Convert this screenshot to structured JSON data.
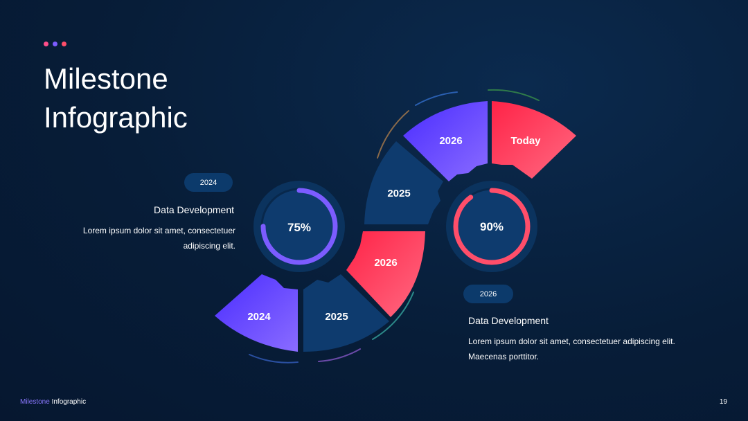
{
  "title": {
    "line1": "Milestone",
    "line2": "Infographic"
  },
  "colors": {
    "dots": [
      "#ff4e8a",
      "#7c5cff",
      "#ff4e6a"
    ],
    "purple_start": "#5b3bff",
    "purple_end": "#8a6cff",
    "red_start": "#ff2d55",
    "red_end": "#ff6680",
    "navy": "#0e3b6e",
    "ring_bg": "#0c3a6b"
  },
  "left_block": {
    "year": "2024",
    "heading": "Data Development",
    "body_line1": "Lorem ipsum dolor sit amet, consectetuer",
    "body_line2": "adipiscing elit."
  },
  "right_block": {
    "year": "2026",
    "heading": "Data Development",
    "body_line1": "Lorem ipsum dolor sit amet, consectetuer adipiscing elit.",
    "body_line2": "Maecenas porttitor."
  },
  "gauges": [
    {
      "label": "75%",
      "value": 0.75,
      "color": "#7c5cff"
    },
    {
      "label": "90%",
      "value": 0.9,
      "color": "#ff4e6a"
    }
  ],
  "segments": {
    "bottom": [
      "2024",
      "2025",
      "2026"
    ],
    "top": [
      "2025",
      "2026",
      "Today"
    ]
  },
  "footer": {
    "accent": "Milestone",
    "rest": " Infographic",
    "page": "19"
  }
}
